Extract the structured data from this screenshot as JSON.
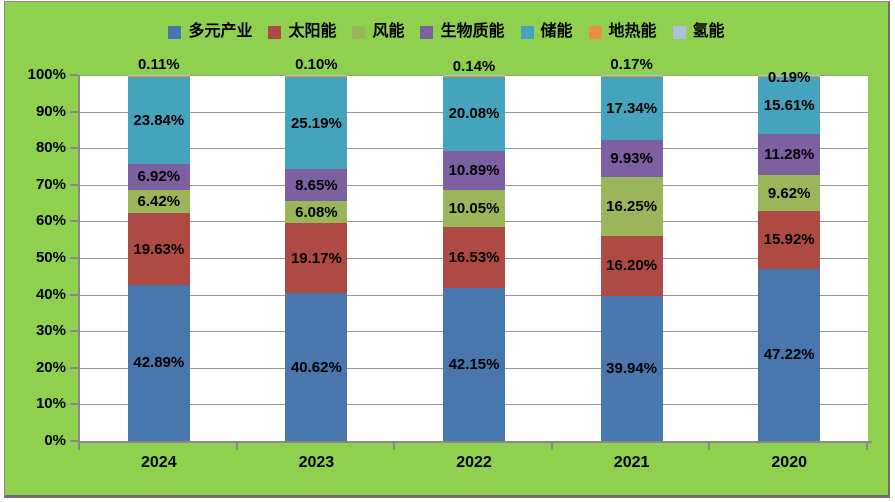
{
  "colors": {
    "background_green": "#8FD04E",
    "plot_background": "#FFFFFF",
    "gridline": "#969696",
    "axis": "#898989",
    "label_text": "#000000"
  },
  "chart_data": {
    "type": "bar",
    "variant": "100%-stacked-column",
    "title": "",
    "xlabel": "",
    "ylabel": "",
    "ylim": [
      0,
      100
    ],
    "grid": true,
    "legend_position": "top",
    "categories": [
      "2024",
      "2023",
      "2022",
      "2021",
      "2020"
    ],
    "y_ticks": [
      "0%",
      "10%",
      "20%",
      "30%",
      "40%",
      "50%",
      "60%",
      "70%",
      "80%",
      "90%",
      "100%"
    ],
    "series": [
      {
        "name": "多元产业",
        "color": "#4A76AE",
        "label_mode": "inside",
        "values": [
          42.89,
          40.62,
          42.15,
          39.94,
          47.22
        ]
      },
      {
        "name": "太阳能",
        "color": "#AE4A44",
        "label_mode": "inside",
        "values": [
          19.63,
          19.17,
          16.53,
          16.2,
          15.92
        ]
      },
      {
        "name": "风能",
        "color": "#9BB65A",
        "label_mode": "inside",
        "values": [
          6.42,
          6.08,
          10.05,
          16.25,
          9.62
        ]
      },
      {
        "name": "生物质能",
        "color": "#7D60A0",
        "label_mode": "inside",
        "values": [
          6.92,
          8.65,
          10.89,
          9.93,
          11.28
        ]
      },
      {
        "name": "储能",
        "color": "#45A3BC",
        "label_mode": "inside",
        "values": [
          23.84,
          25.19,
          20.08,
          17.34,
          15.61
        ]
      },
      {
        "name": "地热能",
        "color": "#E8913C",
        "label_mode": "above",
        "values": [
          0.11,
          0.1,
          0.14,
          0.17,
          0.19
        ]
      },
      {
        "name": "氢能",
        "color": "#AEC2E0",
        "label_mode": "none",
        "values": [
          0.19,
          0.19,
          0.16,
          0.17,
          0.16
        ]
      }
    ],
    "top_labels": [
      "0.11%",
      "0.10%",
      "0.14%",
      "0.17%",
      "0.19%"
    ]
  }
}
